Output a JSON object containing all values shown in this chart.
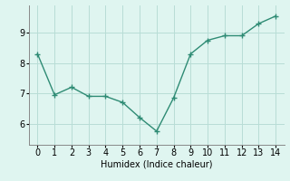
{
  "x": [
    0,
    1,
    2,
    3,
    4,
    5,
    6,
    7,
    8,
    9,
    10,
    11,
    12,
    13,
    14
  ],
  "y": [
    8.3,
    6.95,
    7.2,
    6.9,
    6.9,
    6.7,
    6.2,
    5.75,
    6.85,
    8.3,
    8.75,
    8.9,
    8.9,
    9.3,
    9.55
  ],
  "line_color": "#2e8b74",
  "marker": "+",
  "marker_size": 4,
  "line_width": 1.0,
  "background_color": "#dff5f0",
  "grid_color": "#b8ddd6",
  "xlabel": "Humidex (Indice chaleur)",
  "xlabel_fontsize": 7,
  "xlim": [
    -0.5,
    14.5
  ],
  "ylim": [
    5.3,
    9.9
  ],
  "xticks": [
    0,
    1,
    2,
    3,
    4,
    5,
    6,
    7,
    8,
    9,
    10,
    11,
    12,
    13,
    14
  ],
  "yticks": [
    6,
    7,
    8,
    9
  ],
  "tick_fontsize": 7,
  "spine_color": "#888888"
}
